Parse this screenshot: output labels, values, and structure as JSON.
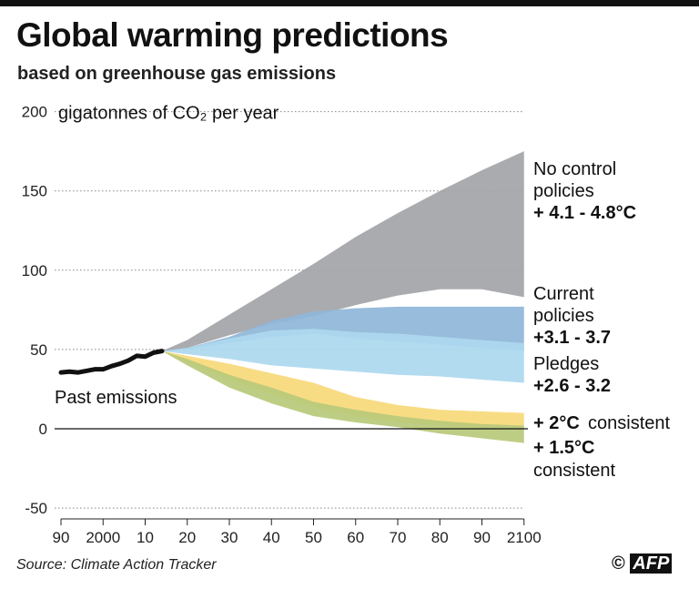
{
  "title": "Global warming predictions",
  "subtitle": "based on greenhouse gas emissions",
  "source": "Source: Climate Action Tracker",
  "credit": "AFP",
  "chart_data": {
    "type": "area",
    "ylabel": "gigatonnes of CO₂ per year",
    "ylim": [
      -50,
      200
    ],
    "xlim": [
      1990,
      2100
    ],
    "yticks": [
      "200",
      "150",
      "100",
      "50",
      "0",
      "-50"
    ],
    "ytick_values": [
      200,
      150,
      100,
      50,
      0,
      -50
    ],
    "xticks": [
      "90",
      "2000",
      "10",
      "20",
      "30",
      "40",
      "50",
      "60",
      "70",
      "80",
      "90",
      "2100"
    ],
    "xtick_values": [
      1990,
      2000,
      2010,
      2020,
      2030,
      2040,
      2050,
      2060,
      2070,
      2080,
      2090,
      2100
    ],
    "grid": "horizontal dotted",
    "past": {
      "label": "Past emissions",
      "color": "#111111",
      "x": [
        1990,
        1992,
        1994,
        1996,
        1998,
        2000,
        2002,
        2004,
        2006,
        2008,
        2010,
        2012,
        2014
      ],
      "y": [
        35.5,
        36,
        35.5,
        36.5,
        37.5,
        37.5,
        39.5,
        41,
        43,
        46,
        45.5,
        48,
        49
      ]
    },
    "bands": [
      {
        "name": "No control policies",
        "range": "+ 4.1 - 4.8°C",
        "color": "#a3a4a8",
        "labelColor": "#6e6f73",
        "x": [
          2014,
          2020,
          2030,
          2040,
          2050,
          2060,
          2070,
          2080,
          2090,
          2100
        ],
        "upper": [
          49,
          56,
          72,
          88,
          104,
          121,
          136,
          150,
          163,
          175
        ],
        "lower": [
          49,
          51,
          59,
          66,
          71,
          78,
          84,
          88,
          88,
          83
        ]
      },
      {
        "name": "Current policies",
        "range": "+3.1 - 3.7",
        "color": "#8fb6d9",
        "labelColor": "#3d87b3",
        "x": [
          2014,
          2020,
          2030,
          2040,
          2050,
          2060,
          2070,
          2080,
          2090,
          2100
        ],
        "upper": [
          49,
          51,
          58,
          68,
          74,
          76,
          77,
          77,
          77,
          77
        ],
        "lower": [
          49,
          50,
          54,
          58,
          60,
          57,
          55,
          53,
          51,
          49
        ]
      },
      {
        "name": "Pledges",
        "range": "+2.6 - 3.2",
        "color": "#acd8ee",
        "labelColor": "#4fb1dc",
        "x": [
          2014,
          2020,
          2030,
          2040,
          2050,
          2060,
          2070,
          2080,
          2090,
          2100
        ],
        "upper": [
          49,
          51,
          57,
          62,
          63,
          61,
          60,
          58,
          56,
          54
        ],
        "lower": [
          49,
          47,
          44,
          40,
          38,
          36,
          34,
          33,
          31,
          29
        ]
      },
      {
        "name": "+ 2°C consistent",
        "range": "+ 2°C",
        "suffix": "consistent",
        "color": "#f7d97a",
        "labelColor": "#f2c83c",
        "x": [
          2014,
          2020,
          2030,
          2040,
          2050,
          2060,
          2070,
          2080,
          2090,
          2100
        ],
        "upper": [
          49,
          46,
          41,
          35,
          29,
          20,
          15,
          12,
          11,
          10
        ],
        "lower": [
          49,
          42,
          31,
          22,
          14,
          8,
          4,
          2,
          1,
          1
        ]
      },
      {
        "name": "+ 1.5°C consistent",
        "range": "+ 1.5°C",
        "suffix": "consistent",
        "color": "#b8c97a",
        "labelColor": "#8fa052",
        "x": [
          2014,
          2020,
          2030,
          2040,
          2050,
          2060,
          2070,
          2080,
          2090,
          2100
        ],
        "upper": [
          49,
          44,
          34,
          26,
          17,
          12,
          8,
          5,
          3,
          2
        ],
        "lower": [
          49,
          40,
          26,
          16,
          8,
          4,
          1,
          -3,
          -6,
          -9
        ]
      }
    ]
  }
}
